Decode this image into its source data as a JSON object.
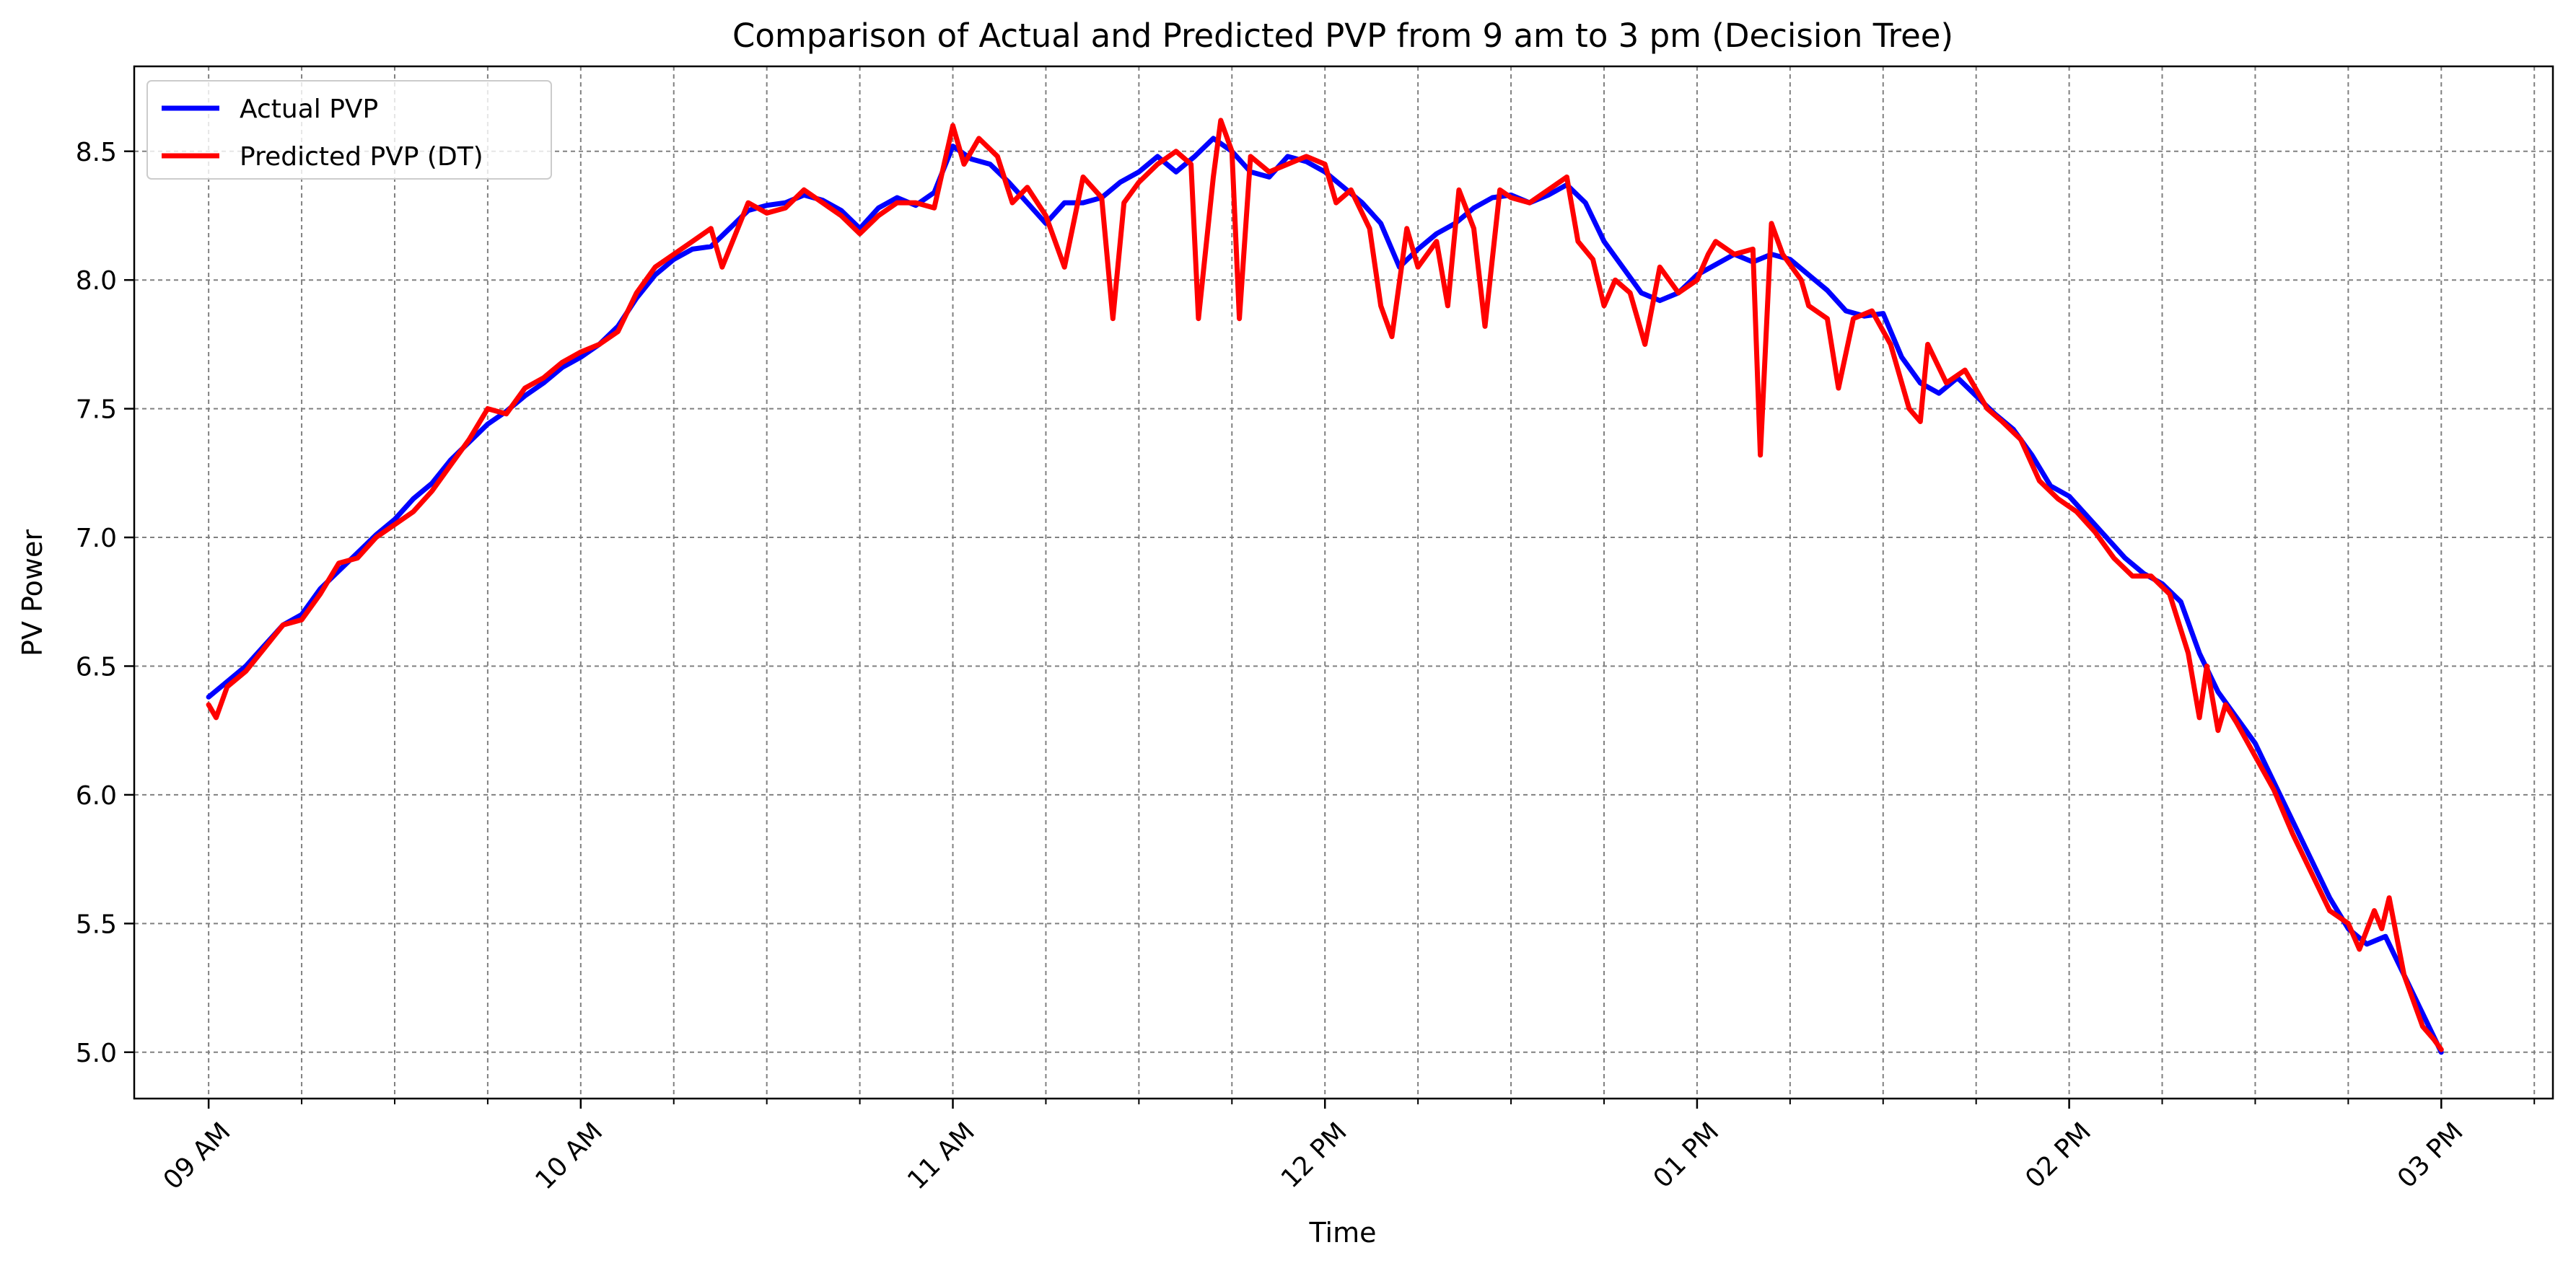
{
  "chart_data": {
    "type": "line",
    "title": "Comparison of Actual and Predicted PVP from 9 am to 3 pm (Decision Tree)",
    "xlabel": "Time",
    "ylabel": "PV Power",
    "x_unit": "hours",
    "xlim": [
      8.8,
      15.3
    ],
    "ylim": [
      4.82,
      8.83
    ],
    "x_ticks": [
      {
        "value": 9,
        "label": "09 AM"
      },
      {
        "value": 10,
        "label": "10 AM"
      },
      {
        "value": 11,
        "label": "11 AM"
      },
      {
        "value": 12,
        "label": "12 PM"
      },
      {
        "value": 13,
        "label": "01 PM"
      },
      {
        "value": 14,
        "label": "02 PM"
      },
      {
        "value": 15,
        "label": "03 PM"
      }
    ],
    "x_minor_ticks": [
      8.75,
      9.25,
      9.5,
      9.75,
      10.25,
      10.5,
      10.75,
      11.25,
      11.5,
      11.75,
      12.25,
      12.5,
      12.75,
      13.25,
      13.5,
      13.75,
      14.25,
      14.5,
      14.75,
      15.25
    ],
    "y_ticks": [
      {
        "value": 5.0,
        "label": "5.0"
      },
      {
        "value": 5.5,
        "label": "5.5"
      },
      {
        "value": 6.0,
        "label": "6.0"
      },
      {
        "value": 6.5,
        "label": "6.5"
      },
      {
        "value": 7.0,
        "label": "7.0"
      },
      {
        "value": 7.5,
        "label": "7.5"
      },
      {
        "value": 8.0,
        "label": "8.0"
      },
      {
        "value": 8.5,
        "label": "8.5"
      }
    ],
    "grid": true,
    "legend": {
      "position": "top-left"
    },
    "series": [
      {
        "name": "Actual PVP",
        "color": "#0000ff",
        "points": [
          [
            9.0,
            6.38
          ],
          [
            9.05,
            6.44
          ],
          [
            9.1,
            6.5
          ],
          [
            9.15,
            6.58
          ],
          [
            9.2,
            6.66
          ],
          [
            9.25,
            6.7
          ],
          [
            9.3,
            6.8
          ],
          [
            9.35,
            6.87
          ],
          [
            9.4,
            6.94
          ],
          [
            9.45,
            7.01
          ],
          [
            9.5,
            7.07
          ],
          [
            9.55,
            7.15
          ],
          [
            9.6,
            7.21
          ],
          [
            9.65,
            7.3
          ],
          [
            9.7,
            7.37
          ],
          [
            9.75,
            7.44
          ],
          [
            9.8,
            7.49
          ],
          [
            9.85,
            7.55
          ],
          [
            9.9,
            7.6
          ],
          [
            9.95,
            7.66
          ],
          [
            10.0,
            7.7
          ],
          [
            10.05,
            7.75
          ],
          [
            10.1,
            7.82
          ],
          [
            10.15,
            7.93
          ],
          [
            10.2,
            8.02
          ],
          [
            10.25,
            8.08
          ],
          [
            10.3,
            8.12
          ],
          [
            10.35,
            8.13
          ],
          [
            10.4,
            8.2
          ],
          [
            10.45,
            8.27
          ],
          [
            10.5,
            8.29
          ],
          [
            10.55,
            8.3
          ],
          [
            10.6,
            8.33
          ],
          [
            10.65,
            8.31
          ],
          [
            10.7,
            8.27
          ],
          [
            10.75,
            8.2
          ],
          [
            10.8,
            8.28
          ],
          [
            10.85,
            8.32
          ],
          [
            10.9,
            8.29
          ],
          [
            10.95,
            8.34
          ],
          [
            11.0,
            8.52
          ],
          [
            11.05,
            8.47
          ],
          [
            11.1,
            8.45
          ],
          [
            11.15,
            8.38
          ],
          [
            11.2,
            8.3
          ],
          [
            11.25,
            8.22
          ],
          [
            11.3,
            8.3
          ],
          [
            11.35,
            8.3
          ],
          [
            11.4,
            8.32
          ],
          [
            11.45,
            8.38
          ],
          [
            11.5,
            8.42
          ],
          [
            11.55,
            8.48
          ],
          [
            11.6,
            8.42
          ],
          [
            11.65,
            8.48
          ],
          [
            11.7,
            8.55
          ],
          [
            11.75,
            8.5
          ],
          [
            11.8,
            8.42
          ],
          [
            11.85,
            8.4
          ],
          [
            11.9,
            8.48
          ],
          [
            11.95,
            8.46
          ],
          [
            12.0,
            8.42
          ],
          [
            12.05,
            8.36
          ],
          [
            12.1,
            8.3
          ],
          [
            12.15,
            8.22
          ],
          [
            12.2,
            8.05
          ],
          [
            12.25,
            8.12
          ],
          [
            12.3,
            8.18
          ],
          [
            12.35,
            8.22
          ],
          [
            12.4,
            8.28
          ],
          [
            12.45,
            8.32
          ],
          [
            12.5,
            8.33
          ],
          [
            12.55,
            8.3
          ],
          [
            12.6,
            8.33
          ],
          [
            12.65,
            8.37
          ],
          [
            12.7,
            8.3
          ],
          [
            12.75,
            8.15
          ],
          [
            12.8,
            8.05
          ],
          [
            12.85,
            7.95
          ],
          [
            12.9,
            7.92
          ],
          [
            12.95,
            7.95
          ],
          [
            13.0,
            8.02
          ],
          [
            13.05,
            8.06
          ],
          [
            13.1,
            8.1
          ],
          [
            13.15,
            8.07
          ],
          [
            13.2,
            8.1
          ],
          [
            13.25,
            8.08
          ],
          [
            13.3,
            8.02
          ],
          [
            13.35,
            7.96
          ],
          [
            13.4,
            7.88
          ],
          [
            13.45,
            7.86
          ],
          [
            13.5,
            7.87
          ],
          [
            13.55,
            7.7
          ],
          [
            13.6,
            7.6
          ],
          [
            13.65,
            7.56
          ],
          [
            13.7,
            7.62
          ],
          [
            13.75,
            7.55
          ],
          [
            13.8,
            7.48
          ],
          [
            13.85,
            7.42
          ],
          [
            13.9,
            7.32
          ],
          [
            13.95,
            7.2
          ],
          [
            14.0,
            7.16
          ],
          [
            14.05,
            7.08
          ],
          [
            14.1,
            7.0
          ],
          [
            14.15,
            6.92
          ],
          [
            14.2,
            6.86
          ],
          [
            14.25,
            6.82
          ],
          [
            14.3,
            6.75
          ],
          [
            14.35,
            6.55
          ],
          [
            14.4,
            6.4
          ],
          [
            14.45,
            6.3
          ],
          [
            14.5,
            6.2
          ],
          [
            14.55,
            6.05
          ],
          [
            14.6,
            5.9
          ],
          [
            14.65,
            5.75
          ],
          [
            14.7,
            5.6
          ],
          [
            14.75,
            5.48
          ],
          [
            14.8,
            5.42
          ],
          [
            14.85,
            5.45
          ],
          [
            14.9,
            5.3
          ],
          [
            14.95,
            5.15
          ],
          [
            15.0,
            5.0
          ]
        ]
      },
      {
        "name": "Predicted PVP (DT)",
        "color": "#ff0000",
        "points": [
          [
            9.0,
            6.35
          ],
          [
            9.02,
            6.3
          ],
          [
            9.05,
            6.42
          ],
          [
            9.1,
            6.48
          ],
          [
            9.15,
            6.57
          ],
          [
            9.2,
            6.66
          ],
          [
            9.25,
            6.68
          ],
          [
            9.3,
            6.78
          ],
          [
            9.35,
            6.9
          ],
          [
            9.4,
            6.92
          ],
          [
            9.45,
            7.0
          ],
          [
            9.5,
            7.05
          ],
          [
            9.55,
            7.1
          ],
          [
            9.6,
            7.18
          ],
          [
            9.65,
            7.28
          ],
          [
            9.7,
            7.38
          ],
          [
            9.75,
            7.5
          ],
          [
            9.8,
            7.48
          ],
          [
            9.85,
            7.58
          ],
          [
            9.9,
            7.62
          ],
          [
            9.95,
            7.68
          ],
          [
            10.0,
            7.72
          ],
          [
            10.05,
            7.75
          ],
          [
            10.1,
            7.8
          ],
          [
            10.15,
            7.95
          ],
          [
            10.2,
            8.05
          ],
          [
            10.25,
            8.1
          ],
          [
            10.3,
            8.15
          ],
          [
            10.35,
            8.2
          ],
          [
            10.38,
            8.05
          ],
          [
            10.45,
            8.3
          ],
          [
            10.5,
            8.26
          ],
          [
            10.55,
            8.28
          ],
          [
            10.6,
            8.35
          ],
          [
            10.65,
            8.3
          ],
          [
            10.7,
            8.25
          ],
          [
            10.75,
            8.18
          ],
          [
            10.8,
            8.25
          ],
          [
            10.85,
            8.3
          ],
          [
            10.9,
            8.3
          ],
          [
            10.95,
            8.28
          ],
          [
            11.0,
            8.6
          ],
          [
            11.03,
            8.45
          ],
          [
            11.07,
            8.55
          ],
          [
            11.12,
            8.48
          ],
          [
            11.16,
            8.3
          ],
          [
            11.2,
            8.36
          ],
          [
            11.25,
            8.25
          ],
          [
            11.3,
            8.05
          ],
          [
            11.35,
            8.4
          ],
          [
            11.4,
            8.32
          ],
          [
            11.43,
            7.85
          ],
          [
            11.46,
            8.3
          ],
          [
            11.5,
            8.38
          ],
          [
            11.55,
            8.45
          ],
          [
            11.6,
            8.5
          ],
          [
            11.64,
            8.45
          ],
          [
            11.66,
            7.85
          ],
          [
            11.7,
            8.4
          ],
          [
            11.72,
            8.62
          ],
          [
            11.75,
            8.5
          ],
          [
            11.77,
            7.85
          ],
          [
            11.8,
            8.48
          ],
          [
            11.85,
            8.42
          ],
          [
            11.9,
            8.45
          ],
          [
            11.95,
            8.48
          ],
          [
            12.0,
            8.45
          ],
          [
            12.03,
            8.3
          ],
          [
            12.07,
            8.35
          ],
          [
            12.12,
            8.2
          ],
          [
            12.15,
            7.9
          ],
          [
            12.18,
            7.78
          ],
          [
            12.22,
            8.2
          ],
          [
            12.25,
            8.05
          ],
          [
            12.3,
            8.15
          ],
          [
            12.33,
            7.9
          ],
          [
            12.36,
            8.35
          ],
          [
            12.4,
            8.2
          ],
          [
            12.43,
            7.82
          ],
          [
            12.47,
            8.35
          ],
          [
            12.5,
            8.32
          ],
          [
            12.55,
            8.3
          ],
          [
            12.6,
            8.35
          ],
          [
            12.65,
            8.4
          ],
          [
            12.68,
            8.15
          ],
          [
            12.72,
            8.08
          ],
          [
            12.75,
            7.9
          ],
          [
            12.78,
            8.0
          ],
          [
            12.82,
            7.95
          ],
          [
            12.86,
            7.75
          ],
          [
            12.9,
            8.05
          ],
          [
            12.95,
            7.95
          ],
          [
            13.0,
            8.0
          ],
          [
            13.03,
            8.1
          ],
          [
            13.05,
            8.15
          ],
          [
            13.1,
            8.1
          ],
          [
            13.15,
            8.12
          ],
          [
            13.17,
            7.32
          ],
          [
            13.2,
            8.22
          ],
          [
            13.23,
            8.1
          ],
          [
            13.28,
            8.0
          ],
          [
            13.3,
            7.9
          ],
          [
            13.35,
            7.85
          ],
          [
            13.38,
            7.58
          ],
          [
            13.42,
            7.85
          ],
          [
            13.47,
            7.88
          ],
          [
            13.52,
            7.75
          ],
          [
            13.57,
            7.5
          ],
          [
            13.6,
            7.45
          ],
          [
            13.62,
            7.75
          ],
          [
            13.67,
            7.6
          ],
          [
            13.72,
            7.65
          ],
          [
            13.78,
            7.5
          ],
          [
            13.82,
            7.45
          ],
          [
            13.87,
            7.38
          ],
          [
            13.92,
            7.22
          ],
          [
            13.97,
            7.15
          ],
          [
            14.02,
            7.1
          ],
          [
            14.07,
            7.02
          ],
          [
            14.12,
            6.92
          ],
          [
            14.17,
            6.85
          ],
          [
            14.22,
            6.85
          ],
          [
            14.27,
            6.78
          ],
          [
            14.32,
            6.55
          ],
          [
            14.35,
            6.3
          ],
          [
            14.37,
            6.5
          ],
          [
            14.4,
            6.25
          ],
          [
            14.42,
            6.35
          ],
          [
            14.45,
            6.28
          ],
          [
            14.5,
            6.15
          ],
          [
            14.55,
            6.02
          ],
          [
            14.6,
            5.85
          ],
          [
            14.65,
            5.7
          ],
          [
            14.7,
            5.55
          ],
          [
            14.75,
            5.5
          ],
          [
            14.78,
            5.4
          ],
          [
            14.82,
            5.55
          ],
          [
            14.84,
            5.48
          ],
          [
            14.86,
            5.6
          ],
          [
            14.9,
            5.3
          ],
          [
            14.95,
            5.1
          ],
          [
            14.98,
            5.05
          ],
          [
            15.0,
            5.01
          ]
        ]
      }
    ]
  }
}
